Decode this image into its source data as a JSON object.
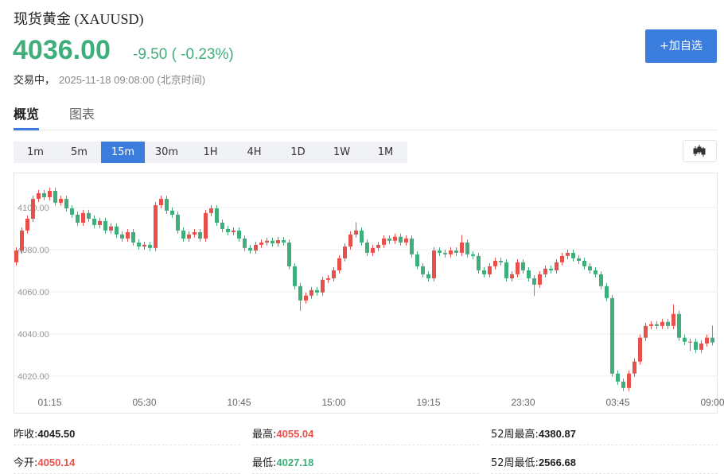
{
  "header": {
    "title": "现货黄金 (XAUUSD)",
    "price": "4036.00",
    "change": "-9.50 ( -0.23%)",
    "status": "交易中，",
    "time": "2025-11-18 09:08:00 (北京时间)",
    "button": "+加自选"
  },
  "tabs": {
    "items": [
      "概览",
      "图表"
    ],
    "selected": 0
  },
  "periods": {
    "items": [
      "1m",
      "5m",
      "15m",
      "30m",
      "1H",
      "4H",
      "1D",
      "1W",
      "1M"
    ],
    "selected": 2
  },
  "chart_data": {
    "type": "candlestick",
    "up_color": "#e8514b",
    "down_color": "#3fae7a",
    "grid": true,
    "ylim": [
      4012.8,
      4116.2
    ],
    "yticks": [
      {
        "value": 4020,
        "label": "4020.00"
      },
      {
        "value": 4040,
        "label": "4040.00"
      },
      {
        "value": 4060,
        "label": "4060.00"
      },
      {
        "value": 4080,
        "label": "4080.00"
      },
      {
        "value": 4100,
        "label": "4100.00"
      }
    ],
    "categories": [
      null,
      null,
      null,
      null,
      null,
      null,
      "01:15",
      null,
      null,
      null,
      null,
      null,
      null,
      null,
      null,
      null,
      null,
      null,
      null,
      null,
      null,
      null,
      null,
      "05:30",
      null,
      null,
      null,
      null,
      null,
      null,
      null,
      null,
      null,
      null,
      null,
      null,
      null,
      null,
      null,
      null,
      "10:45",
      null,
      null,
      null,
      null,
      null,
      null,
      null,
      null,
      null,
      null,
      null,
      null,
      null,
      null,
      null,
      null,
      "15:00",
      null,
      null,
      null,
      null,
      null,
      null,
      null,
      null,
      null,
      null,
      null,
      null,
      null,
      null,
      null,
      null,
      "19:15",
      null,
      null,
      null,
      null,
      null,
      null,
      null,
      null,
      null,
      null,
      null,
      null,
      null,
      null,
      null,
      null,
      "23:30",
      null,
      null,
      null,
      null,
      null,
      null,
      null,
      null,
      null,
      null,
      null,
      null,
      null,
      null,
      null,
      null,
      "03:45",
      null,
      null,
      null,
      null,
      null,
      null,
      null,
      null,
      null,
      null,
      null,
      null,
      null,
      null,
      null,
      null,
      "09:00"
    ],
    "open": [
      4074.0,
      4079.6,
      4089.1,
      4094.7,
      4104.1,
      4106.8,
      4104.9,
      4107.9,
      4102.3,
      4104.1,
      4099.6,
      4096.6,
      4092.8,
      4097.4,
      4094.7,
      4091.7,
      4093.6,
      4089.1,
      4091.0,
      4087.2,
      4085.3,
      4088.3,
      4083.4,
      4081.5,
      4082.3,
      4080.8,
      4101.1,
      4104.1,
      4098.5,
      4096.6,
      4089.1,
      4085.3,
      4087.2,
      4088.3,
      4085.3,
      4097.4,
      4099.6,
      4092.8,
      4089.8,
      4088.3,
      4089.1,
      4085.3,
      4080.8,
      4079.6,
      4082.3,
      4083.4,
      4084.2,
      4083.0,
      4084.5,
      4083.4,
      4072.1,
      4062.7,
      4055.9,
      4058.2,
      4060.8,
      4059.7,
      4065.7,
      4066.4,
      4070.2,
      4075.9,
      4081.5,
      4087.2,
      4089.1,
      4083.4,
      4078.5,
      4080.8,
      4082.3,
      4085.3,
      4084.2,
      4086.1,
      4083.4,
      4085.3,
      4077.8,
      4072.1,
      4068.3,
      4066.4,
      4079.6,
      4078.5,
      4077.8,
      4079.6,
      4078.5,
      4083.4,
      4077.8,
      4077.0,
      4070.2,
      4068.3,
      4072.1,
      4074.7,
      4074.0,
      4066.4,
      4068.3,
      4074.0,
      4070.2,
      4066.4,
      4063.4,
      4068.3,
      4071.0,
      4070.2,
      4074.0,
      4077.0,
      4078.5,
      4075.9,
      4074.7,
      4072.1,
      4070.2,
      4068.3,
      4062.7,
      4057.0,
      4021.2,
      4017.4,
      4014.4,
      4021.2,
      4026.9,
      4038.2,
      4043.8,
      4044.6,
      4043.8,
      4045.7,
      4043.8,
      4049.5,
      4038.2,
      4036.3,
      4036.3,
      4032.5,
      4035.5,
      4038.2
    ],
    "high": [
      4081.1,
      4090.6,
      4096.2,
      4105.6,
      4108.3,
      4108.3,
      4109.4,
      4109.4,
      4105.6,
      4105.6,
      4101.1,
      4098.1,
      4098.9,
      4098.9,
      4096.2,
      4095.1,
      4095.1,
      4092.5,
      4092.5,
      4088.7,
      4089.8,
      4089.8,
      4084.9,
      4083.8,
      4083.8,
      4102.6,
      4105.6,
      4105.6,
      4100.0,
      4098.1,
      4090.6,
      4088.7,
      4089.8,
      4089.8,
      4098.9,
      4101.1,
      4101.1,
      4094.3,
      4091.3,
      4090.6,
      4090.6,
      4086.8,
      4082.3,
      4083.8,
      4084.9,
      4085.7,
      4085.7,
      4086.0,
      4086.0,
      4084.9,
      4073.6,
      4064.2,
      4059.7,
      4062.3,
      4062.3,
      4067.2,
      4067.9,
      4071.7,
      4077.4,
      4083.0,
      4088.7,
      4093.0,
      4090.6,
      4084.9,
      4082.3,
      4083.8,
      4086.8,
      4086.8,
      4087.6,
      4087.6,
      4086.8,
      4086.8,
      4079.3,
      4073.6,
      4069.8,
      4081.1,
      4081.1,
      4080.0,
      4081.1,
      4081.1,
      4087.0,
      4084.9,
      4079.3,
      4078.5,
      4071.7,
      4073.6,
      4076.2,
      4076.2,
      4075.5,
      4069.8,
      4075.5,
      4075.5,
      4071.7,
      4067.9,
      4069.8,
      4072.5,
      4072.5,
      4075.5,
      4078.5,
      4080.0,
      4080.0,
      4077.4,
      4076.2,
      4073.6,
      4071.7,
      4069.8,
      4064.2,
      4058.5,
      4022.7,
      4018.9,
      4022.7,
      4028.4,
      4039.7,
      4045.3,
      4046.1,
      4046.1,
      4047.2,
      4047.2,
      4054.0,
      4051.0,
      4039.7,
      4037.8,
      4037.8,
      4037.0,
      4039.7,
      4044.0
    ],
    "low": [
      4072.5,
      4078.1,
      4087.6,
      4093.2,
      4102.6,
      4103.4,
      4103.4,
      4100.8,
      4100.8,
      4098.1,
      4095.1,
      4091.3,
      4091.3,
      4093.2,
      4090.2,
      4090.2,
      4087.6,
      4087.6,
      4085.7,
      4083.8,
      4083.8,
      4081.9,
      4080.0,
      4080.0,
      4079.3,
      4079.3,
      4099.6,
      4097.0,
      4095.1,
      4087.6,
      4083.8,
      4083.8,
      4085.7,
      4083.8,
      4083.8,
      4095.9,
      4091.3,
      4088.3,
      4086.8,
      4086.8,
      4083.8,
      4079.3,
      4078.1,
      4078.1,
      4080.8,
      4081.9,
      4081.5,
      4081.5,
      4081.9,
      4070.6,
      4061.2,
      4051.0,
      4054.4,
      4056.7,
      4058.2,
      4058.2,
      4064.2,
      4064.9,
      4068.7,
      4074.4,
      4080.0,
      4085.7,
      4081.9,
      4077.0,
      4077.0,
      4079.3,
      4080.8,
      4082.7,
      4082.7,
      4081.9,
      4081.9,
      4076.3,
      4070.6,
      4066.8,
      4064.9,
      4064.9,
      4077.0,
      4076.3,
      4076.3,
      4077.0,
      4077.0,
      4076.3,
      4075.5,
      4068.7,
      4066.8,
      4066.8,
      4070.6,
      4072.5,
      4064.9,
      4064.9,
      4066.8,
      4068.7,
      4064.9,
      4058.0,
      4061.9,
      4066.8,
      4068.7,
      4068.7,
      4072.5,
      4075.5,
      4074.4,
      4073.2,
      4070.6,
      4068.7,
      4066.8,
      4061.2,
      4055.5,
      4019.7,
      4015.9,
      4012.9,
      4012.9,
      4019.7,
      4025.4,
      4036.7,
      4042.3,
      4042.3,
      4042.3,
      4042.3,
      4042.3,
      4036.7,
      4034.8,
      4032.0,
      4031.0,
      4031.0,
      4034.0,
      4034.5
    ],
    "close": [
      4079.6,
      4089.1,
      4094.7,
      4104.1,
      4106.8,
      4104.9,
      4107.9,
      4102.3,
      4104.1,
      4099.6,
      4096.6,
      4092.8,
      4097.4,
      4094.7,
      4091.7,
      4093.6,
      4089.1,
      4091.0,
      4087.2,
      4085.3,
      4088.3,
      4083.4,
      4081.5,
      4082.3,
      4080.8,
      4101.1,
      4104.1,
      4098.5,
      4096.6,
      4089.1,
      4085.3,
      4087.2,
      4088.3,
      4085.3,
      4097.4,
      4099.6,
      4092.8,
      4089.8,
      4088.3,
      4089.1,
      4085.3,
      4080.8,
      4079.6,
      4082.3,
      4083.4,
      4084.2,
      4083.0,
      4084.5,
      4083.4,
      4072.1,
      4062.7,
      4055.9,
      4058.2,
      4060.8,
      4059.7,
      4065.7,
      4066.4,
      4070.2,
      4075.9,
      4081.5,
      4087.2,
      4089.1,
      4083.4,
      4078.5,
      4080.8,
      4082.3,
      4085.3,
      4084.2,
      4086.1,
      4083.4,
      4085.3,
      4077.8,
      4072.1,
      4068.3,
      4066.4,
      4079.6,
      4078.5,
      4077.8,
      4079.6,
      4078.5,
      4083.4,
      4077.8,
      4077.0,
      4070.2,
      4068.3,
      4072.1,
      4074.7,
      4074.0,
      4066.4,
      4068.3,
      4074.0,
      4070.2,
      4066.4,
      4063.4,
      4068.3,
      4071.0,
      4070.2,
      4074.0,
      4077.0,
      4078.5,
      4075.9,
      4074.7,
      4072.1,
      4070.2,
      4068.3,
      4062.7,
      4057.0,
      4021.2,
      4017.4,
      4014.4,
      4021.2,
      4026.9,
      4038.2,
      4043.8,
      4044.6,
      4043.8,
      4045.7,
      4043.8,
      4049.5,
      4038.2,
      4036.3,
      4036.3,
      4032.5,
      4035.5,
      4038.2,
      4036.0
    ]
  },
  "stats": [
    {
      "label": "昨收:",
      "value": "4045.50",
      "color": "#222222"
    },
    {
      "label": "最高:",
      "value": "4055.04",
      "color": "#e8514b"
    },
    {
      "label": "52周最高:",
      "value": "4380.87",
      "color": "#222222"
    },
    {
      "label": "今开:",
      "value": "4050.14",
      "color": "#e8514b"
    },
    {
      "label": "最低:",
      "value": "4027.18",
      "color": "#3fae7a"
    },
    {
      "label": "52周最低:",
      "value": "2566.68",
      "color": "#222222"
    }
  ]
}
